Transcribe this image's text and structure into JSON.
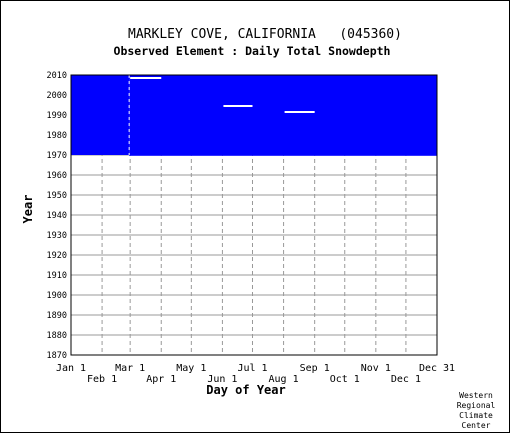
{
  "chart_data": {
    "type": "bar",
    "title": "MARKLEY COVE, CALIFORNIA   (045360)",
    "subtitle": "Observed Element : Daily Total Snowdepth",
    "xlabel": "Day of Year",
    "ylabel": "Year",
    "ylim": [
      1870,
      2010
    ],
    "xlim_days": [
      1,
      366
    ],
    "y_ticks": [
      1870,
      1880,
      1890,
      1900,
      1910,
      1920,
      1930,
      1940,
      1950,
      1960,
      1970,
      1980,
      1990,
      2000,
      2010
    ],
    "x_ticks_top": [
      {
        "label": "Jan 1",
        "day": 1
      },
      {
        "label": "Mar 1",
        "day": 60
      },
      {
        "label": "May 1",
        "day": 121
      },
      {
        "label": "Jul 1",
        "day": 182
      },
      {
        "label": "Sep 1",
        "day": 244
      },
      {
        "label": "Nov 1",
        "day": 305
      },
      {
        "label": "Dec 31",
        "day": 366
      }
    ],
    "x_ticks_bottom": [
      {
        "label": "Feb 1",
        "day": 32
      },
      {
        "label": "Apr 1",
        "day": 91
      },
      {
        "label": "Jun 1",
        "day": 152
      },
      {
        "label": "Aug 1",
        "day": 213
      },
      {
        "label": "Oct 1",
        "day": 274
      },
      {
        "label": "Dec 1",
        "day": 335
      }
    ],
    "grid": true,
    "coverage": [
      {
        "year_start": 1970,
        "year_end": 2010,
        "day_start": 1,
        "day_end": 59
      },
      {
        "year_start": 1969.6,
        "year_end": 2010,
        "day_start": 59,
        "day_end": 366
      }
    ],
    "gaps": [
      {
        "year": 2008.5,
        "day_start": 60,
        "day_end": 91
      },
      {
        "year": 1994.5,
        "day_start": 153,
        "day_end": 182
      },
      {
        "year": 1991.5,
        "day_start": 214,
        "day_end": 244
      }
    ],
    "coverage_color": "#0000ff",
    "gap_color": "#ffffff"
  },
  "credit": [
    "Western",
    "Regional",
    "Climate",
    "Center"
  ]
}
